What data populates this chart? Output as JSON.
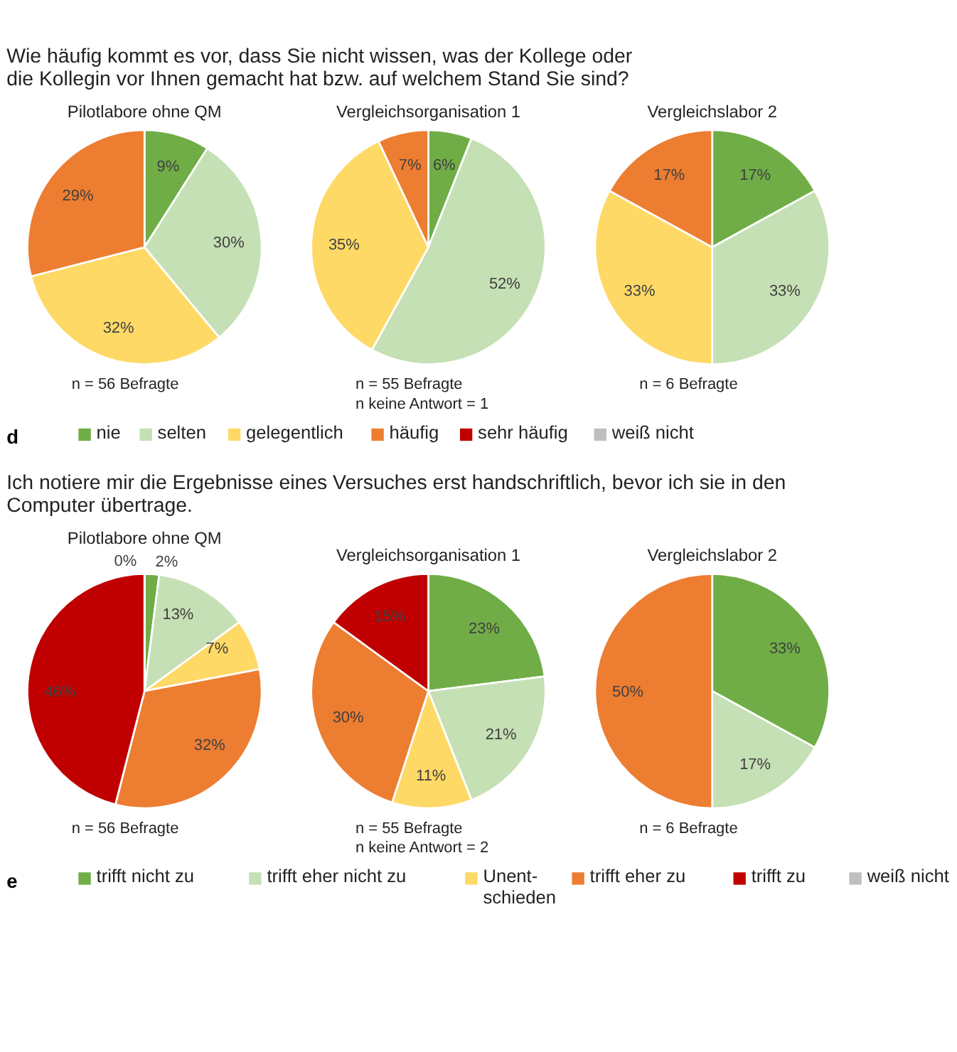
{
  "chart_data": [
    {
      "type": "pie",
      "subtitle": "Wie häufig kommt es vor, dass Sie nicht wissen, was der Kollege oder\ndie Kollegin vor Ihnen gemacht hat bzw. auf welchem Stand Sie sind?",
      "title": "Pilotlabore ohne QM",
      "legend": "bottom",
      "annotations": [
        "d",
        "n = 56 Befragte"
      ],
      "categories": [
        "nie",
        "selten",
        "gelegentlich",
        "häufig",
        "sehr häufig",
        "weiß nicht"
      ],
      "colors": [
        "#70ad47",
        "#c5e0b4",
        "#ffd966",
        "#ed7d31",
        "#c00000",
        "#bfbfbf"
      ],
      "values": [
        9,
        30,
        32,
        29,
        null,
        null
      ],
      "value_labels": [
        "9%",
        "30%",
        "32%",
        "29%",
        null,
        null
      ]
    },
    {
      "type": "pie",
      "title": "Vergleichsorganisation 1",
      "annotations": [
        "n = 55 Befragte",
        "n keine Antwort = 1"
      ],
      "categories": [
        null,
        null,
        null,
        null,
        null,
        null
      ],
      "colors": [
        "#70ad47",
        "#c5e0b4",
        "#ffd966",
        "#ed7d31",
        "#c00000",
        "#bfbfbf"
      ],
      "values": [
        6,
        52,
        35,
        7,
        null,
        null
      ],
      "value_labels": [
        "6%",
        "52%",
        "35%",
        "7%",
        null,
        null
      ]
    },
    {
      "type": "pie",
      "title": "Vergleichslabor 2",
      "annotations": [
        "n = 6 Befragte"
      ],
      "categories": [
        null,
        null,
        null,
        null,
        null,
        null
      ],
      "colors": [
        "#70ad47",
        "#c5e0b4",
        "#ffd966",
        "#ed7d31",
        "#c00000",
        "#bfbfbf"
      ],
      "values": [
        17,
        33,
        33,
        17,
        null,
        null
      ],
      "value_labels": [
        "17%",
        "33%",
        "33%",
        "17%",
        null,
        null
      ]
    },
    {
      "type": "pie",
      "subtitle": "Ich notiere mir die Ergebnisse eines Versuches erst handschriftlich, bevor ich sie in den\nComputer übertrage.",
      "title": "Pilotlabore ohne QM",
      "legend": "bottom",
      "annotations": [
        "e",
        "n = 56 Befragte"
      ],
      "categories": [
        "trifft nicht zu",
        "trifft eher nicht zu",
        "Unent-\nschieden",
        "trifft eher zu",
        "trifft zu",
        "weiß nicht"
      ],
      "colors": [
        "#70ad47",
        "#c5e0b4",
        "#ffd966",
        "#ed7d31",
        "#c00000",
        "#bfbfbf"
      ],
      "values": [
        2,
        13,
        7,
        32,
        46,
        0
      ],
      "value_labels": [
        "2%",
        "13%",
        "7%",
        "32%",
        "46%",
        "0%"
      ]
    },
    {
      "type": "pie",
      "title": "Vergleichsorganisation 1",
      "annotations": [
        "n = 55 Befragte",
        "n keine Antwort = 2"
      ],
      "categories": [
        null,
        null,
        null,
        null,
        null,
        null
      ],
      "colors": [
        "#70ad47",
        "#c5e0b4",
        "#ffd966",
        "#ed7d31",
        "#c00000",
        "#bfbfbf"
      ],
      "values": [
        23,
        21,
        11,
        30,
        15,
        null
      ],
      "value_labels": [
        "23%",
        "21%",
        "11%",
        "30%",
        "15%",
        null
      ]
    },
    {
      "type": "pie",
      "title": "Vergleichslabor 2",
      "annotations": [
        "n = 6 Befragte"
      ],
      "categories": [
        null,
        null,
        null,
        null,
        null,
        null
      ],
      "colors": [
        "#70ad47",
        "#c5e0b4",
        "#ffd966",
        "#ed7d31",
        "#c00000",
        "#bfbfbf"
      ],
      "values": [
        33,
        17,
        null,
        50,
        null,
        null
      ],
      "value_labels": [
        "33%",
        "17%",
        null,
        "50%",
        null,
        null
      ]
    }
  ]
}
